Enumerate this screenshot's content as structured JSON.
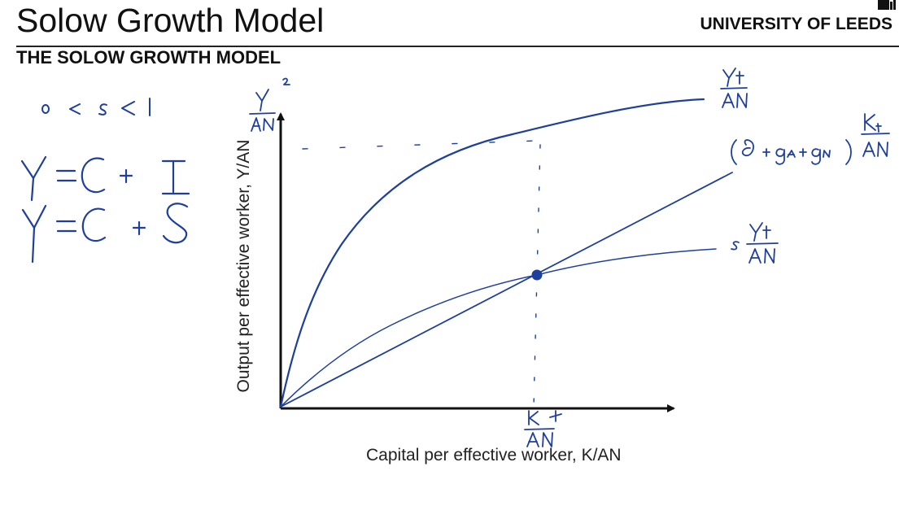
{
  "header": {
    "title": "Solow Growth Model",
    "brand": "UNIVERSITY OF LEEDS",
    "subtitle": "THE SOLOW GROWTH MODEL"
  },
  "diagram": {
    "x_axis_label": "Capital per effective worker, K/AN",
    "y_axis_label": "Output per effective worker, Y/AN"
  },
  "colors": {
    "ink": "#1e3f9e",
    "text": "#111111"
  }
}
